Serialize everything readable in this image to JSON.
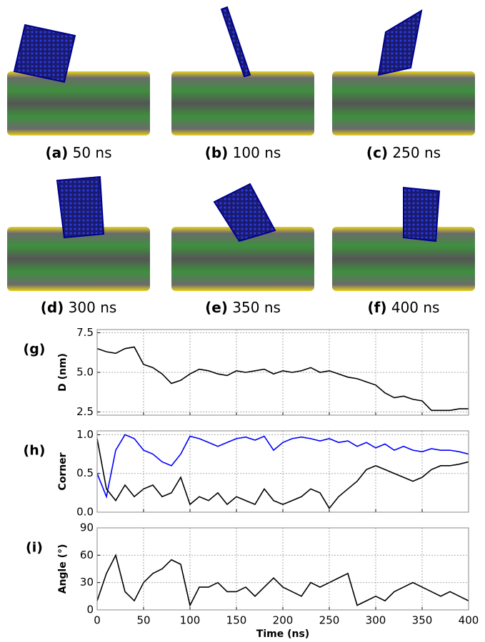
{
  "panels": [
    {
      "label": "(a)",
      "caption": "50 ns"
    },
    {
      "label": "(b)",
      "caption": "100 ns"
    },
    {
      "label": "(c)",
      "caption": "250 ns"
    },
    {
      "label": "(d)",
      "caption": "300 ns"
    },
    {
      "label": "(e)",
      "caption": "350 ns"
    },
    {
      "label": "(f)",
      "caption": "400 ns"
    }
  ],
  "chart_data": [
    {
      "type": "line",
      "label": "(g)",
      "ylabel": "D (nm)",
      "grid": true,
      "x": [
        0,
        10,
        20,
        30,
        40,
        50,
        60,
        70,
        80,
        90,
        100,
        110,
        120,
        130,
        140,
        150,
        160,
        170,
        180,
        190,
        200,
        210,
        220,
        230,
        240,
        250,
        260,
        270,
        280,
        290,
        300,
        310,
        320,
        330,
        340,
        350,
        360,
        370,
        380,
        390,
        400
      ],
      "series": [
        {
          "color": "#000000",
          "values": [
            6.5,
            6.3,
            6.2,
            6.5,
            6.6,
            5.5,
            5.3,
            4.9,
            4.3,
            4.5,
            4.9,
            5.2,
            5.1,
            4.9,
            4.8,
            5.1,
            5.0,
            5.1,
            5.2,
            4.9,
            5.1,
            5.0,
            5.1,
            5.3,
            5.0,
            5.1,
            4.9,
            4.7,
            4.6,
            4.4,
            4.2,
            3.7,
            3.4,
            3.5,
            3.3,
            3.2,
            2.6,
            2.6,
            2.6,
            2.7,
            2.7
          ]
        }
      ],
      "xlim": [
        0,
        400
      ],
      "xticks": [
        0,
        50,
        100,
        150,
        200,
        250,
        300,
        350,
        400
      ],
      "ylim": [
        2.3,
        7.7
      ],
      "yticks": [
        2.5,
        {
          "value": 5,
          "label": "5.0"
        },
        7.5
      ]
    },
    {
      "type": "line",
      "label": "(h)",
      "ylabel": "Corner",
      "grid": true,
      "x": [
        0,
        10,
        20,
        30,
        40,
        50,
        60,
        70,
        80,
        90,
        100,
        110,
        120,
        130,
        140,
        150,
        160,
        170,
        180,
        190,
        200,
        210,
        220,
        230,
        240,
        250,
        260,
        270,
        280,
        290,
        300,
        310,
        320,
        330,
        340,
        350,
        360,
        370,
        380,
        390,
        400
      ],
      "series": [
        {
          "color": "#0000ff",
          "values": [
            0.5,
            0.2,
            0.8,
            1.0,
            0.95,
            0.8,
            0.75,
            0.65,
            0.6,
            0.75,
            0.98,
            0.95,
            0.9,
            0.85,
            0.9,
            0.95,
            0.97,
            0.93,
            0.98,
            0.8,
            0.9,
            0.95,
            0.97,
            0.95,
            0.92,
            0.95,
            0.9,
            0.92,
            0.85,
            0.9,
            0.83,
            0.88,
            0.8,
            0.85,
            0.8,
            0.78,
            0.82,
            0.8,
            0.8,
            0.78,
            0.75
          ]
        },
        {
          "color": "#000000",
          "values": [
            0.95,
            0.3,
            0.15,
            0.35,
            0.2,
            0.3,
            0.35,
            0.2,
            0.25,
            0.45,
            0.1,
            0.2,
            0.15,
            0.25,
            0.1,
            0.2,
            0.15,
            0.1,
            0.3,
            0.15,
            0.1,
            0.15,
            0.2,
            0.3,
            0.25,
            0.05,
            0.2,
            0.3,
            0.4,
            0.55,
            0.6,
            0.55,
            0.5,
            0.45,
            0.4,
            0.45,
            0.55,
            0.6,
            0.6,
            0.62,
            0.65
          ]
        }
      ],
      "xlim": [
        0,
        400
      ],
      "xticks": [
        0,
        50,
        100,
        150,
        200,
        250,
        300,
        350,
        400
      ],
      "ylim": [
        0,
        1.05
      ],
      "yticks": [
        {
          "value": 0,
          "label": "0.0"
        },
        0.5,
        {
          "value": 1,
          "label": "1.0"
        }
      ]
    },
    {
      "type": "line",
      "label": "(i)",
      "ylabel": "Angle (°)",
      "xlabel": "Time (ns)",
      "grid": true,
      "x": [
        0,
        10,
        20,
        30,
        40,
        50,
        60,
        70,
        80,
        90,
        100,
        110,
        120,
        130,
        140,
        150,
        160,
        170,
        180,
        190,
        200,
        210,
        220,
        230,
        240,
        250,
        260,
        270,
        280,
        290,
        300,
        310,
        320,
        330,
        340,
        350,
        360,
        370,
        380,
        390,
        400
      ],
      "series": [
        {
          "color": "#000000",
          "values": [
            10,
            40,
            60,
            20,
            10,
            30,
            40,
            45,
            55,
            50,
            5,
            25,
            25,
            30,
            20,
            20,
            25,
            15,
            25,
            35,
            25,
            20,
            15,
            30,
            25,
            30,
            35,
            40,
            5,
            10,
            15,
            10,
            20,
            25,
            30,
            25,
            20,
            15,
            20,
            15,
            10
          ]
        }
      ],
      "xlim": [
        0,
        400
      ],
      "xticks": [
        0,
        50,
        100,
        150,
        200,
        250,
        300,
        350,
        400
      ],
      "ylim": [
        0,
        90
      ],
      "yticks": [
        0,
        30,
        60,
        90
      ]
    }
  ]
}
